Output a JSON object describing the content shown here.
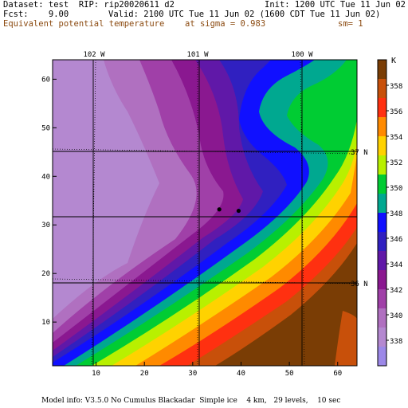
{
  "header": {
    "dataset": "Dataset: test  RIP: rip20020611 d2",
    "init": "Init: 1200 UTC Tue 11 Jun 02",
    "fcst": "Fcst:    9.00",
    "valid": "Valid: 2100 UTC Tue 11 Jun 02 (1600 CDT Tue 11 Jun 02)",
    "field": "Equivalent potential temperature",
    "sigma": "at sigma = 0.983",
    "sm": "sm= 1"
  },
  "map": {
    "lon_labels": [
      "102 W",
      "101 W",
      "100 W"
    ],
    "lat_labels": [
      "37 N",
      "36 N"
    ],
    "x_ticks": [
      "10",
      "20",
      "30",
      "40",
      "50",
      "60"
    ],
    "y_ticks": [
      "10",
      "20",
      "30",
      "40",
      "50",
      "60"
    ],
    "x_range": [
      1,
      64
    ],
    "y_range": [
      1,
      64
    ],
    "markers": [
      {
        "x": 35.5,
        "y": 33.2
      },
      {
        "x": 39.5,
        "y": 32.9
      }
    ]
  },
  "colorbar": {
    "unit": "K",
    "labels": [
      "358",
      "356",
      "354",
      "352",
      "350",
      "348",
      "346",
      "344",
      "342",
      "340",
      "338"
    ],
    "colors": [
      "#7a3d05",
      "#c8500a",
      "#ff3010",
      "#ff8a00",
      "#ffd200",
      "#b8f000",
      "#00cc33",
      "#00a890",
      "#1010ff",
      "#3020c0",
      "#6018a8",
      "#8a1890",
      "#a040a8",
      "#b070c0",
      "#b488d0",
      "#9c88e8"
    ]
  },
  "footer": {
    "text": "Model info: V3.5.0 No Cumulus Blackadar  Simple ice    4 km,   29 levels,    10 sec"
  }
}
